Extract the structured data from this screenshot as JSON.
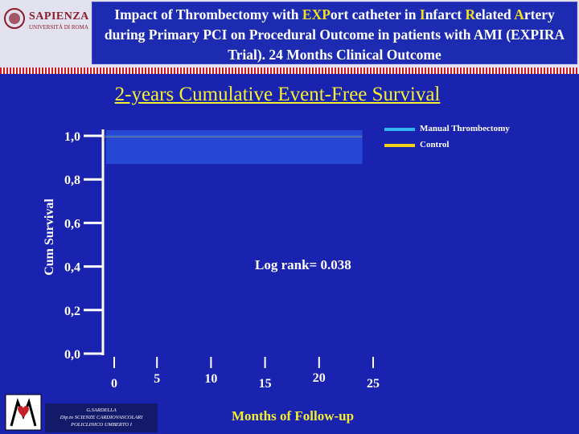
{
  "header": {
    "logo_name": "SAPIENZA",
    "logo_sub": "UNIVERSITÀ DI ROMA",
    "title_parts": [
      {
        "t": "Impact of Thrombectomy with ",
        "hl": false
      },
      {
        "t": "EXP",
        "hl": true
      },
      {
        "t": "ort catheter in ",
        "hl": false
      },
      {
        "t": "I",
        "hl": true
      },
      {
        "t": "nfarct ",
        "hl": false
      },
      {
        "t": "R",
        "hl": true
      },
      {
        "t": "elated ",
        "hl": false
      },
      {
        "t": "A",
        "hl": true
      },
      {
        "t": "rtery during Primary PCI on Procedural Outcome in patients with AMI (EXPIRA Trial). 24 Months Clinical Outcome",
        "hl": false
      }
    ]
  },
  "chart_data": {
    "type": "line",
    "title": "2-years Cumulative Event-Free Survival",
    "ylabel": "Cum Survival",
    "xlabel": "Months of Follow-up",
    "y_ticks": [
      "1,0",
      "0,8",
      "0,6",
      "0,4",
      "0,2",
      "0,0"
    ],
    "y_tick_values": [
      1.0,
      0.8,
      0.6,
      0.4,
      0.2,
      0.0
    ],
    "x_ticks": [
      "0",
      "5",
      "10",
      "15",
      "20",
      "25"
    ],
    "x_tick_values": [
      0,
      5,
      10,
      15,
      20,
      25
    ],
    "ylim": [
      0,
      1
    ],
    "xlim": [
      0,
      25
    ],
    "grid": false,
    "legend_position": "top-right",
    "series": [
      {
        "name": "Manual Thrombectomy",
        "color": "#33b4f0",
        "x": [
          0,
          24
        ],
        "y": [
          1.0,
          1.0
        ]
      },
      {
        "name": "Control",
        "color": "#f0d21a",
        "x": [
          0,
          24
        ],
        "y": [
          1.0,
          1.0
        ]
      }
    ],
    "annotation": "Log rank= 0.038"
  },
  "footer": {
    "lines": [
      "G.SARDELLA",
      "Dip.to SCIENZE CARDIOVASCOLARI",
      "POLICLINICO UMBERTO I"
    ]
  },
  "colors": {
    "background": "#1a22b0",
    "title_yellow": "#f4ee30",
    "axis": "#ffffff",
    "plot_band": "#2647d4"
  }
}
